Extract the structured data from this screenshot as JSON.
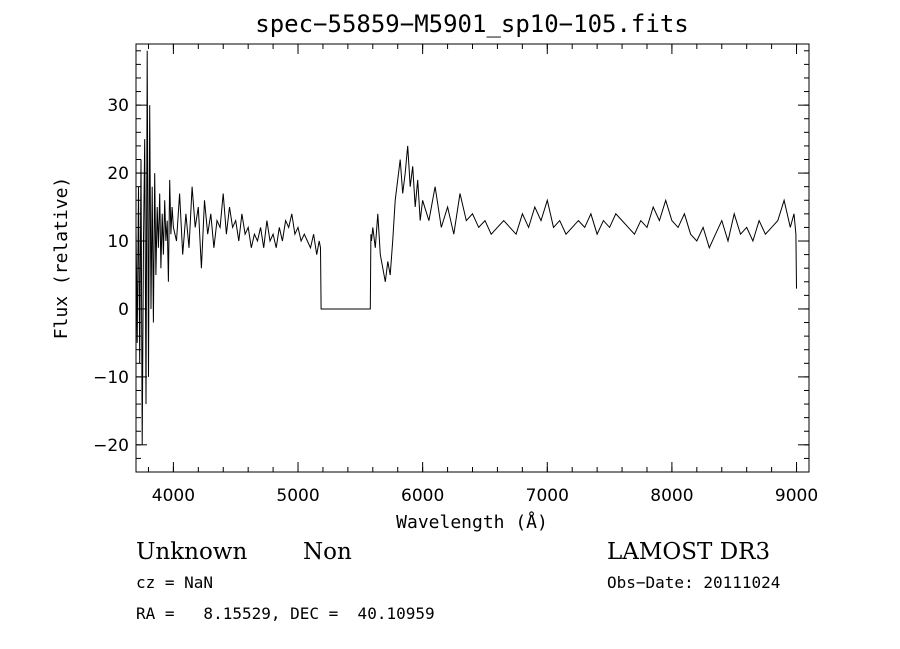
{
  "chart_data": {
    "type": "line",
    "title": "spec−55859−M5901_sp10−105.fits",
    "xlabel": "Wavelength (Å)",
    "ylabel": "Flux (relative)",
    "xlim": [
      3700,
      9100
    ],
    "ylim": [
      -24,
      39
    ],
    "x_ticks": [
      {
        "value": 4000,
        "label": "4000"
      },
      {
        "value": 5000,
        "label": "5000"
      },
      {
        "value": 6000,
        "label": "6000"
      },
      {
        "value": 7000,
        "label": "7000"
      },
      {
        "value": 8000,
        "label": "8000"
      },
      {
        "value": 9000,
        "label": "9000"
      }
    ],
    "y_ticks": [
      {
        "value": -20,
        "label": "−20"
      },
      {
        "value": -10,
        "label": "−10"
      },
      {
        "value": 0,
        "label": "0"
      },
      {
        "value": 10,
        "label": "10"
      },
      {
        "value": 20,
        "label": "20"
      },
      {
        "value": 30,
        "label": "30"
      }
    ],
    "x_minor_step": 200,
    "y_minor_step": 2,
    "grid": false,
    "series": [
      {
        "x": [
          3700,
          3710,
          3720,
          3730,
          3740,
          3750,
          3760,
          3770,
          3780,
          3790,
          3800,
          3810,
          3820,
          3830,
          3840,
          3850,
          3860,
          3870,
          3880,
          3890,
          3900,
          3910,
          3920,
          3930,
          3940,
          3950,
          3960,
          3970,
          3980,
          3990,
          4000,
          4025,
          4050,
          4075,
          4100,
          4125,
          4150,
          4175,
          4200,
          4225,
          4250,
          4275,
          4300,
          4325,
          4350,
          4375,
          4400,
          4425,
          4450,
          4475,
          4500,
          4525,
          4550,
          4575,
          4600,
          4625,
          4650,
          4675,
          4700,
          4725,
          4750,
          4775,
          4800,
          4825,
          4850,
          4875,
          4900,
          4925,
          4950,
          4975,
          5000,
          5025,
          5050,
          5075,
          5100,
          5125,
          5150,
          5170,
          5180,
          5185,
          5200,
          5300,
          5400,
          5500,
          5580,
          5585,
          5590,
          5600,
          5620,
          5640,
          5660,
          5680,
          5700,
          5720,
          5740,
          5760,
          5780,
          5800,
          5820,
          5840,
          5860,
          5880,
          5900,
          5920,
          5940,
          5960,
          5980,
          6000,
          6050,
          6100,
          6150,
          6200,
          6250,
          6300,
          6350,
          6400,
          6450,
          6500,
          6550,
          6600,
          6650,
          6700,
          6750,
          6800,
          6850,
          6900,
          6950,
          7000,
          7050,
          7100,
          7150,
          7200,
          7250,
          7300,
          7350,
          7400,
          7450,
          7500,
          7550,
          7600,
          7650,
          7700,
          7750,
          7800,
          7850,
          7900,
          7950,
          8000,
          8050,
          8100,
          8150,
          8200,
          8250,
          8300,
          8350,
          8400,
          8450,
          8500,
          8550,
          8600,
          8650,
          8700,
          8750,
          8800,
          8850,
          8900,
          8950,
          8980,
          8995,
          9000
        ],
        "y": [
          12,
          -5,
          18,
          -8,
          22,
          -20,
          10,
          25,
          -14,
          38,
          -10,
          30,
          0,
          18,
          -2,
          20,
          5,
          15,
          9,
          17,
          6,
          14,
          8,
          16,
          10,
          13,
          4,
          19,
          11,
          15,
          12,
          10,
          17,
          8,
          14,
          9,
          18,
          12,
          15,
          6,
          16,
          11,
          14,
          9,
          13,
          12,
          17,
          11,
          15,
          12,
          13,
          10,
          14,
          11,
          12,
          9,
          11,
          10,
          12,
          9,
          13,
          10,
          11,
          9,
          12,
          10,
          13,
          12,
          14,
          11,
          12,
          10,
          11,
          10,
          9,
          11,
          8,
          10,
          9,
          0,
          0,
          0,
          0,
          0,
          0,
          11,
          10,
          12,
          9,
          14,
          8,
          6,
          4,
          7,
          5,
          10,
          16,
          19,
          22,
          17,
          20,
          24,
          18,
          21,
          15,
          19,
          13,
          16,
          13,
          18,
          12,
          15,
          11,
          17,
          13,
          14,
          12,
          13,
          11,
          12,
          13,
          12,
          11,
          14,
          12,
          15,
          13,
          16,
          12,
          13,
          11,
          12,
          13,
          12,
          14,
          11,
          13,
          12,
          14,
          13,
          12,
          11,
          13,
          12,
          15,
          13,
          16,
          13,
          12,
          14,
          11,
          10,
          12,
          9,
          11,
          13,
          10,
          14,
          11,
          12,
          10,
          13,
          11,
          12,
          13,
          16,
          12,
          14,
          11,
          3
        ]
      }
    ]
  },
  "annotations": {
    "object_class": "Unknown",
    "object_subclass": "Non",
    "survey": "LAMOST DR3",
    "cz": "cz = NaN",
    "obs_date": "Obs−Date: 20111024",
    "coordinates": "RA =   8.15529, DEC =  40.10959"
  }
}
